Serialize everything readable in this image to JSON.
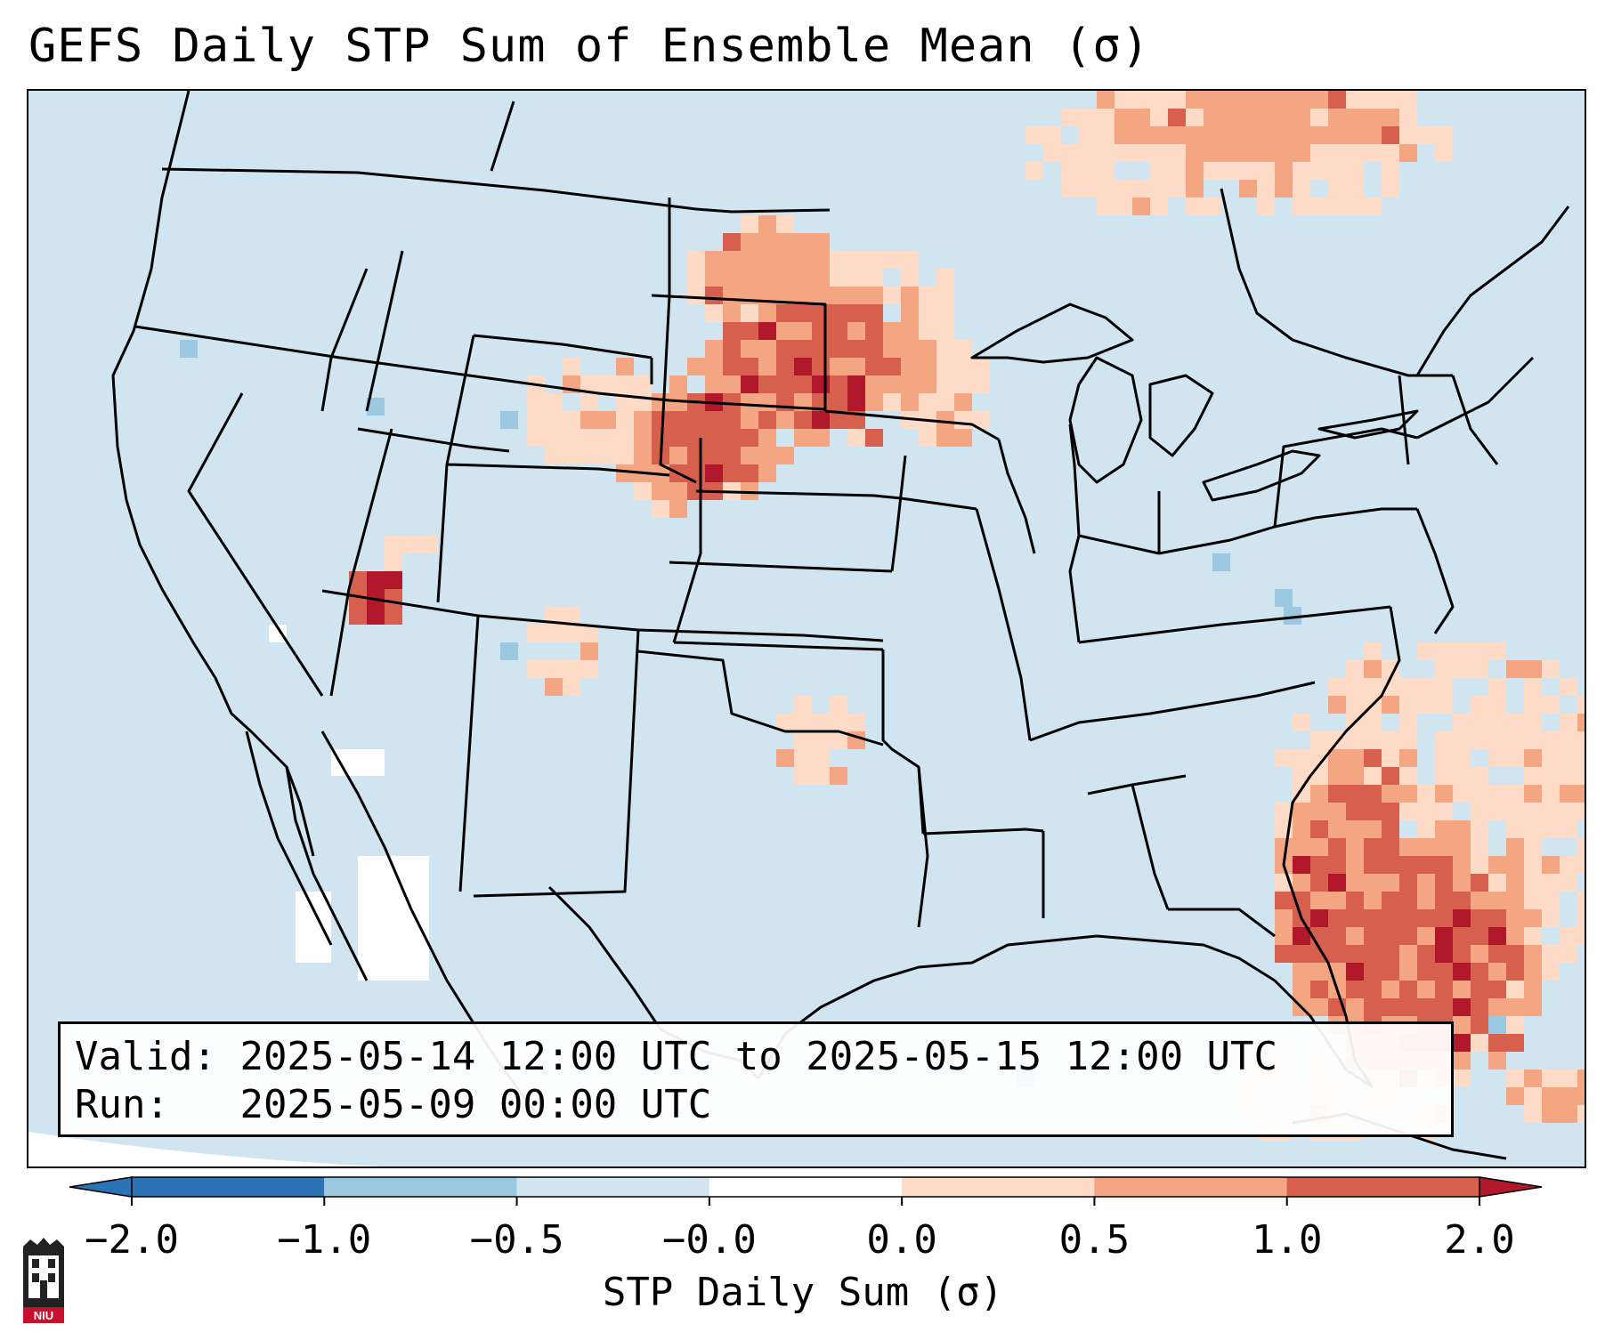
{
  "title": "GEFS Daily STP Sum of Ensemble Mean (σ)",
  "info": {
    "valid_label": "Valid:",
    "valid_text": "2025-05-14 12:00 UTC to 2025-05-15 12:00 UTC",
    "run_label": "Run:",
    "run_text": "2025-05-09 00:00 UTC"
  },
  "colorbar": {
    "label": "STP Daily Sum (σ)",
    "ticks": [
      "−2.0",
      "−1.0",
      "−0.5",
      "−0.0",
      "0.0",
      "0.5",
      "1.0",
      "2.0"
    ],
    "bin_colors": [
      "#2b73b5",
      "#5c9ccc",
      "#9ac8e1",
      "#d1e5f0",
      "#fddbc7",
      "#f4a582",
      "#d6604d",
      "#b2182b"
    ],
    "extend_low_color": "#2b73b5",
    "extend_high_color": "#b2182b"
  },
  "colors": {
    "background": "#d1e5f0",
    "near_neutral_positive": "#fddbc7",
    "moderate_positive": "#f4a582",
    "strong_positive": "#d6604d",
    "very_strong_positive": "#b2182b",
    "weak_negative": "#9ac8e1",
    "boundaries": "#000000"
  },
  "logo": {
    "text": "NIU",
    "icon": "niu-tower-icon"
  }
}
